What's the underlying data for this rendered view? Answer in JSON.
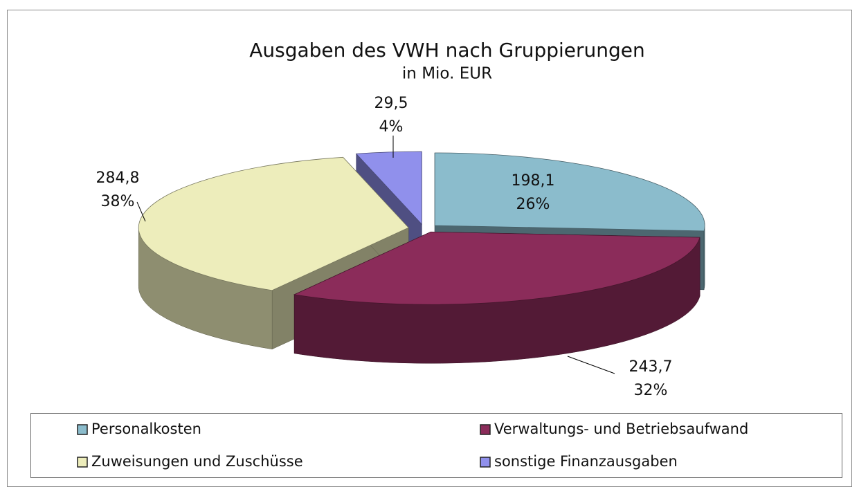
{
  "chart_data": {
    "type": "pie3d",
    "title": "Ausgaben des VWH nach Gruppierungen",
    "subtitle": "in Mio. EUR",
    "categories": [
      "Personalkosten",
      "Verwaltungs- und Betriebsaufwand",
      "Zuweisungen und Zuschüsse",
      "sonstige Finanzausgaben"
    ],
    "values": [
      198.1,
      243.7,
      284.8,
      29.5
    ],
    "value_labels": [
      "198,1",
      "243,7",
      "284,8",
      "29,5"
    ],
    "percentages": [
      26,
      32,
      38,
      4
    ],
    "percentage_labels": [
      "26%",
      "32%",
      "38%",
      "4%"
    ],
    "colors": [
      "#8bbccc",
      "#8b2c5a",
      "#ededbb",
      "#9090ec"
    ],
    "legend": "bottom"
  }
}
